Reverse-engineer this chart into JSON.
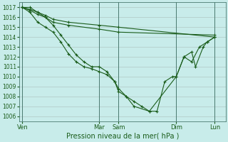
{
  "xlabel": "Pression niveau de la mer( hPa )",
  "bg_color": "#c8ecea",
  "line_color": "#1a5c1a",
  "grid_color": "#b0c8c4",
  "ylim": [
    1005.5,
    1017.5
  ],
  "yticks": [
    1006,
    1007,
    1008,
    1009,
    1010,
    1011,
    1012,
    1013,
    1014,
    1015,
    1016,
    1017
  ],
  "xtick_labels": [
    "Ven",
    "Mar",
    "Sam",
    "Dim",
    "Lun"
  ],
  "xtick_positions": [
    0,
    5,
    6.25,
    10,
    12.5
  ],
  "xlim": [
    -0.2,
    13.2
  ],
  "vline_positions": [
    0,
    5,
    6.25,
    10,
    12.5
  ],
  "line1_x": [
    0,
    0.5,
    1,
    1.5,
    2,
    2.5,
    3,
    3.5,
    4,
    4.5,
    5,
    5.5,
    6,
    6.25,
    6.75,
    7.25,
    7.75,
    8.25,
    8.75,
    9.25,
    9.75,
    10,
    10.5,
    11,
    11.25,
    11.75,
    12,
    12.5
  ],
  "line1_y": [
    1017,
    1017,
    1016.5,
    1016,
    1015.2,
    1014.2,
    1013.2,
    1012.2,
    1011.5,
    1011.0,
    1011.0,
    1010.5,
    1009.5,
    1008.8,
    1008.0,
    1007.5,
    1007.0,
    1006.5,
    1006.5,
    1009.5,
    1010.0,
    1010.0,
    1012.0,
    1012.5,
    1011.0,
    1013.0,
    1013.5,
    1014.0
  ],
  "line2_x": [
    0,
    0.5,
    1,
    1.5,
    2,
    2.5,
    3,
    3.5,
    4,
    4.5,
    5,
    5.5,
    6,
    6.25,
    6.75,
    7.25,
    8.25,
    10,
    10.5,
    11,
    11.5,
    12,
    12.5
  ],
  "line2_y": [
    1017,
    1016.5,
    1015.5,
    1015.0,
    1014.5,
    1013.5,
    1012.3,
    1011.5,
    1011.0,
    1010.8,
    1010.5,
    1010.2,
    1009.5,
    1008.5,
    1008.0,
    1007.0,
    1006.5,
    1010.0,
    1012.0,
    1011.5,
    1013.0,
    1013.5,
    1014.0
  ],
  "line3_x": [
    0,
    0.5,
    1,
    1.5,
    2,
    3,
    5,
    6.25,
    12.5
  ],
  "line3_y": [
    1017,
    1016.8,
    1016.5,
    1016.2,
    1015.8,
    1015.5,
    1015.2,
    1015.0,
    1014.0
  ],
  "line4_x": [
    0,
    0.5,
    1,
    1.5,
    2,
    3,
    5,
    6.25,
    12.5
  ],
  "line4_y": [
    1017,
    1016.7,
    1016.3,
    1016.0,
    1015.5,
    1015.2,
    1014.8,
    1014.5,
    1014.2
  ]
}
